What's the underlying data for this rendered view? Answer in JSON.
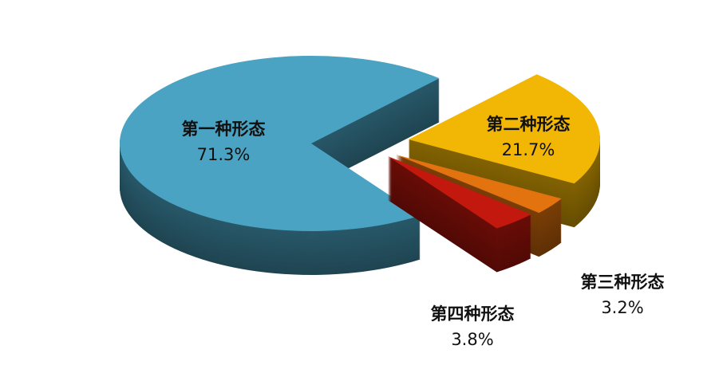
{
  "chart_data": {
    "type": "pie",
    "subtype": "3d-exploded",
    "categories": [
      "第一种形态",
      "第二种形态",
      "第三种形态",
      "第四种形态"
    ],
    "values": [
      71.3,
      21.7,
      3.2,
      3.8
    ],
    "labels": [
      "71.3%",
      "21.7%",
      "3.2%",
      "3.8%"
    ],
    "colors": [
      "#4aa3c2",
      "#f2b705",
      "#e2730e",
      "#c2180e"
    ],
    "legend": "none"
  }
}
